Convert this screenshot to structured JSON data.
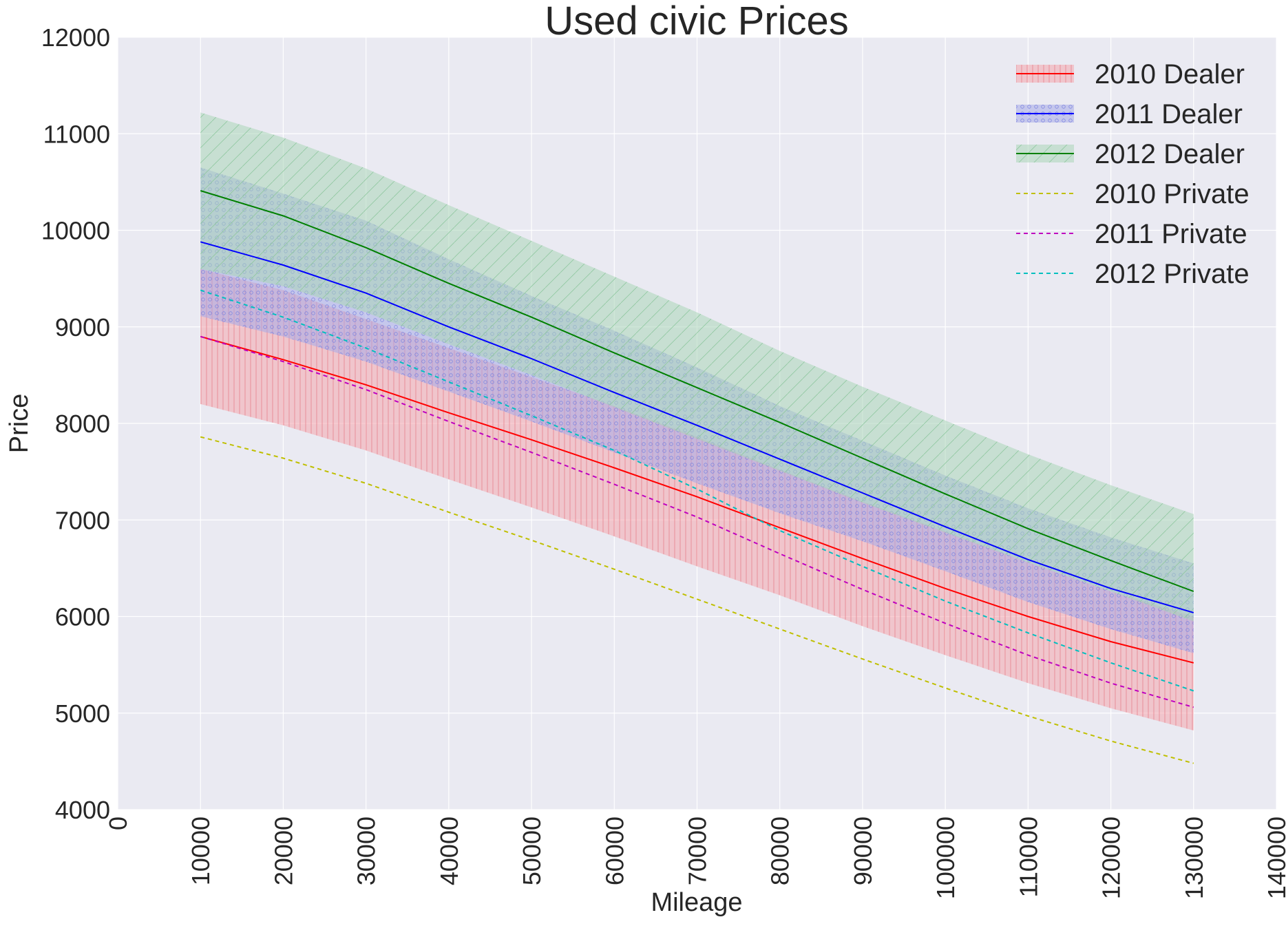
{
  "chart_data": {
    "type": "line",
    "title": "Used civic Prices",
    "xlabel": "Mileage",
    "ylabel": "Price",
    "xlim": [
      0,
      140000
    ],
    "ylim": [
      4000,
      12000
    ],
    "xticks": [
      "0",
      "10000",
      "20000",
      "30000",
      "40000",
      "50000",
      "60000",
      "70000",
      "80000",
      "90000",
      "100000",
      "110000",
      "120000",
      "130000",
      "140000"
    ],
    "yticks": [
      "4000",
      "5000",
      "6000",
      "7000",
      "8000",
      "9000",
      "10000",
      "11000",
      "12000"
    ],
    "grid": true,
    "legend_position": "top-right",
    "x": [
      10000,
      20000,
      30000,
      40000,
      50000,
      60000,
      70000,
      80000,
      90000,
      100000,
      110000,
      120000,
      130000
    ],
    "bands": [
      {
        "name": "2010 Dealer",
        "color": "#ff0000",
        "fill": "#f4a6ad",
        "hatch": "vertical",
        "lower": [
          8200,
          7980,
          7720,
          7420,
          7130,
          6830,
          6520,
          6220,
          5900,
          5600,
          5310,
          5050,
          4820
        ],
        "upper": [
          9600,
          9380,
          9080,
          8780,
          8480,
          8180,
          7860,
          7520,
          7190,
          6880,
          6560,
          6260,
          6000
        ]
      },
      {
        "name": "2011 Dealer",
        "color": "#0000ff",
        "fill": "#a6a9e8",
        "hatch": "dots",
        "lower": [
          9110,
          8900,
          8640,
          8330,
          8020,
          7700,
          7380,
          7070,
          6780,
          6470,
          6150,
          5870,
          5620
        ],
        "upper": [
          10650,
          10380,
          10100,
          9700,
          9320,
          8960,
          8580,
          8180,
          7820,
          7460,
          7120,
          6820,
          6550
        ]
      },
      {
        "name": "2012 Dealer",
        "color": "#008000",
        "fill": "#a9d5b8",
        "hatch": "diagonal",
        "lower": [
          9600,
          9420,
          9150,
          8820,
          8500,
          8170,
          7840,
          7510,
          7180,
          6870,
          6560,
          6260,
          5950
        ],
        "upper": [
          11220,
          10960,
          10640,
          10260,
          9890,
          9520,
          9150,
          8750,
          8380,
          8030,
          7680,
          7360,
          7060
        ]
      }
    ],
    "series": [
      {
        "name": "2010 Dealer",
        "color": "#ff0000",
        "style": "solid",
        "values": [
          8900,
          8660,
          8400,
          8110,
          7830,
          7540,
          7240,
          6920,
          6600,
          6290,
          6000,
          5740,
          5520
        ]
      },
      {
        "name": "2011 Dealer",
        "color": "#0000ff",
        "style": "solid",
        "values": [
          9880,
          9640,
          9350,
          9000,
          8670,
          8320,
          7980,
          7630,
          7280,
          6930,
          6590,
          6290,
          6040
        ]
      },
      {
        "name": "2012 Dealer",
        "color": "#008000",
        "style": "solid",
        "values": [
          10410,
          10150,
          9820,
          9450,
          9100,
          8730,
          8370,
          8010,
          7640,
          7270,
          6910,
          6580,
          6260
        ]
      },
      {
        "name": "2010 Private",
        "color": "#bfbf00",
        "style": "dashed",
        "values": [
          7860,
          7640,
          7380,
          7080,
          6790,
          6490,
          6180,
          5870,
          5560,
          5260,
          4970,
          4710,
          4480
        ]
      },
      {
        "name": "2011 Private",
        "color": "#bf00bf",
        "style": "dashed",
        "values": [
          8900,
          8640,
          8350,
          8020,
          7700,
          7370,
          7030,
          6650,
          6280,
          5930,
          5600,
          5310,
          5060
        ]
      },
      {
        "name": "2012 Private",
        "color": "#00bfbf",
        "style": "dashed",
        "values": [
          9380,
          9100,
          8780,
          8430,
          8080,
          7720,
          7320,
          6890,
          6520,
          6160,
          5830,
          5520,
          5230
        ]
      }
    ]
  }
}
